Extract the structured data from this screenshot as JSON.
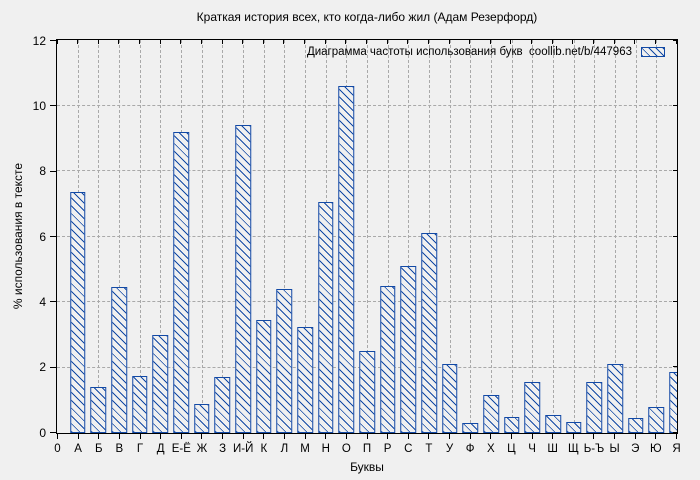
{
  "chart_data": {
    "type": "bar",
    "title": "Краткая история всех, кто когда-либо жил (Адам Резерфорд)",
    "legend_label": "Диаграмма частоты использования букв  coollib.net/b/447963",
    "legend_position": "top-right-inside",
    "xlabel": "Буквы",
    "ylabel": "% использования в тексте",
    "x_axis_origin_tick": "0",
    "categories": [
      "А",
      "Б",
      "В",
      "Г",
      "Д",
      "Е-Ё",
      "Ж",
      "З",
      "И-Й",
      "К",
      "Л",
      "М",
      "Н",
      "О",
      "П",
      "Р",
      "С",
      "Т",
      "У",
      "Ф",
      "Х",
      "Ц",
      "Ч",
      "Ш",
      "Щ",
      "Ь-Ъ",
      "Ы",
      "Э",
      "Ю",
      "Я"
    ],
    "values": [
      7.35,
      1.4,
      4.45,
      1.75,
      3.0,
      9.2,
      0.9,
      1.7,
      9.4,
      3.45,
      4.4,
      3.25,
      7.05,
      10.6,
      2.5,
      4.5,
      5.1,
      6.1,
      2.1,
      0.3,
      1.15,
      0.5,
      1.55,
      0.55,
      0.35,
      1.55,
      2.1,
      0.45,
      0.8,
      1.85
    ],
    "ylim": [
      0,
      12
    ],
    "yticks": [
      0,
      2,
      4,
      6,
      8,
      10,
      12
    ],
    "grid": "dashed-both-axes",
    "bar_style": "outline-with-diagonal-hatch",
    "hatch_direction": "\\"
  },
  "colors": {
    "bar_outline": "#1249a5",
    "background": "#f0f0f0",
    "gridline": "#a9a9a9",
    "axis": "#000000",
    "text": "#000000"
  }
}
